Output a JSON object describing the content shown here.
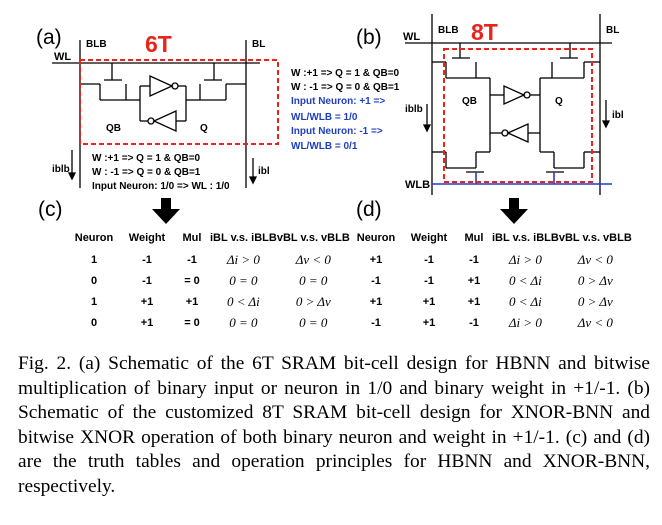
{
  "panel_a": {
    "label": "(a)",
    "title": "6T",
    "blb": "BLB",
    "bl": "BL",
    "wl": "WL",
    "qb": "QB",
    "q": "Q",
    "iblb": "iblb",
    "ibl": "ibl",
    "ops": [
      "W :+1  => Q = 1 & QB=0",
      "W : -1  => Q = 0 & QB=1",
      "Input Neuron: 1/0  => WL : 1/0"
    ]
  },
  "panel_b": {
    "label": "(b)",
    "title": "8T",
    "wl": "WL",
    "blb": "BLB",
    "bl": "BL",
    "wlb": "WLB",
    "qb": "QB",
    "q": "Q",
    "iblb": "iblb",
    "ibl": "ibl",
    "ops_black": [
      "W :+1  => Q = 1 & QB=0",
      "W : -1  => Q = 0 & QB=1"
    ],
    "ops_blue": [
      "Input Neuron: +1  =>",
      "WL/WLB = 1/0",
      "Input Neuron:  -1  =>",
      "WL/WLB = 0/1"
    ]
  },
  "panel_c": {
    "label": "(c)",
    "headers": [
      "Neuron",
      "Weight",
      "Mul",
      "iBL v.s. iBLB",
      "vBL v.s. vBLB"
    ],
    "rows": [
      [
        "1",
        "-1",
        "-1",
        "Δi > 0",
        "Δv < 0"
      ],
      [
        "0",
        "-1",
        "= 0",
        "0 = 0",
        "0 = 0"
      ],
      [
        "1",
        "+1",
        "+1",
        "0 < Δi",
        "0 > Δv"
      ],
      [
        "0",
        "+1",
        "= 0",
        "0 = 0",
        "0 = 0"
      ]
    ]
  },
  "panel_d": {
    "label": "(d)",
    "headers": [
      "Neuron",
      "Weight",
      "Mul",
      "iBL v.s. iBLB",
      "vBL v.s. vBLB"
    ],
    "rows": [
      [
        "+1",
        "-1",
        "-1",
        "Δi > 0",
        "Δv < 0"
      ],
      [
        "-1",
        "-1",
        "+1",
        "0 < Δi",
        "0 > Δv"
      ],
      [
        "+1",
        "+1",
        "+1",
        "0 < Δi",
        "0 > Δv"
      ],
      [
        "-1",
        "+1",
        "-1",
        "Δi > 0",
        "Δv < 0"
      ]
    ]
  },
  "caption": "Fig. 2. (a) Schematic of the 6T SRAM bit-cell design for HBNN and bitwise multiplication of binary input or neuron in 1/0 and binary weight in +1/-1. (b) Schematic of the customized 8T SRAM bit-cell design for XNOR-BNN and bitwise XNOR operation of both binary neuron and weight in +1/-1. (c) and (d) are the truth tables and operation principles for HBNN and XNOR-BNN, respectively.",
  "colors": {
    "red": "#e8241c",
    "blue": "#1f3fbf",
    "black": "#000000"
  }
}
